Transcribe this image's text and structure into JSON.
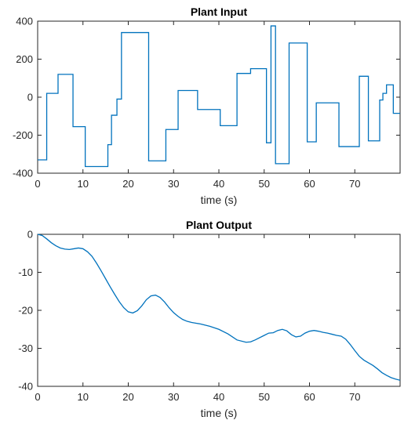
{
  "chart_data": [
    {
      "type": "line",
      "title": "Plant Input",
      "xlabel": "time (s)",
      "ylabel": "",
      "xlim": [
        0,
        80
      ],
      "ylim": [
        -400,
        400
      ],
      "xticks": [
        0,
        10,
        20,
        30,
        40,
        50,
        60,
        70
      ],
      "yticks": [
        -400,
        -200,
        0,
        200,
        400
      ],
      "grid": false,
      "color": "#0072BD",
      "step": true,
      "series": [
        {
          "x": [
            0,
            2,
            4.5,
            7.8,
            10.5,
            15.5,
            16.3,
            17.5,
            18.5,
            20,
            24.5,
            28.3,
            31,
            35.3,
            40.3,
            44,
            47,
            50.5,
            51.5,
            52.5,
            55.5,
            59.5,
            61.5,
            66.5,
            71,
            73,
            75.5,
            76.2,
            77,
            78.5,
            80
          ],
          "y": [
            -330,
            20,
            120,
            -155,
            -365,
            -250,
            -95,
            -10,
            340,
            340,
            -335,
            -170,
            35,
            -65,
            -150,
            125,
            150,
            -240,
            375,
            -350,
            285,
            -235,
            -30,
            -260,
            110,
            -230,
            -15,
            20,
            65,
            -85,
            -85
          ]
        }
      ]
    },
    {
      "type": "line",
      "title": "Plant Output",
      "xlabel": "time (s)",
      "ylabel": "",
      "xlim": [
        0,
        80
      ],
      "ylim": [
        -40,
        0
      ],
      "xticks": [
        0,
        10,
        20,
        30,
        40,
        50,
        60,
        70
      ],
      "yticks": [
        -40,
        -30,
        -20,
        -10,
        0
      ],
      "grid": false,
      "color": "#0072BD",
      "step": false,
      "series": [
        {
          "x": [
            0,
            1,
            2,
            3,
            4,
            5,
            6,
            7,
            8,
            9,
            10,
            11,
            12,
            13,
            14,
            15,
            16,
            17,
            18,
            19,
            20,
            21,
            22,
            23,
            24,
            25,
            26,
            27,
            28,
            29,
            30,
            31,
            32,
            33,
            34,
            35,
            36,
            38,
            40,
            42,
            44,
            46,
            47,
            48,
            50,
            51,
            52,
            53,
            54,
            55,
            56,
            57,
            58,
            59,
            60,
            61,
            62,
            63,
            64,
            65,
            66,
            67,
            68,
            69,
            70,
            71,
            72,
            73,
            74,
            75,
            76,
            77,
            78,
            79,
            80
          ],
          "y": [
            0,
            -0.3,
            -1.2,
            -2.2,
            -3.0,
            -3.6,
            -3.9,
            -4.0,
            -3.8,
            -3.6,
            -3.8,
            -4.6,
            -5.8,
            -7.6,
            -9.6,
            -11.7,
            -13.8,
            -15.8,
            -17.7,
            -19.3,
            -20.4,
            -20.7,
            -20.1,
            -18.8,
            -17.2,
            -16.2,
            -16.0,
            -16.6,
            -17.8,
            -19.3,
            -20.6,
            -21.6,
            -22.4,
            -22.9,
            -23.2,
            -23.4,
            -23.6,
            -24.2,
            -25.0,
            -26.2,
            -27.8,
            -28.4,
            -28.3,
            -27.8,
            -26.6,
            -26.0,
            -25.9,
            -25.3,
            -25.0,
            -25.4,
            -26.4,
            -27.0,
            -26.8,
            -26.0,
            -25.5,
            -25.3,
            -25.5,
            -25.8,
            -26.0,
            -26.3,
            -26.6,
            -26.8,
            -27.6,
            -29.0,
            -30.6,
            -32.1,
            -33.1,
            -33.8,
            -34.5,
            -35.4,
            -36.4,
            -37.1,
            -37.7,
            -38.1,
            -38.4
          ]
        }
      ]
    }
  ]
}
